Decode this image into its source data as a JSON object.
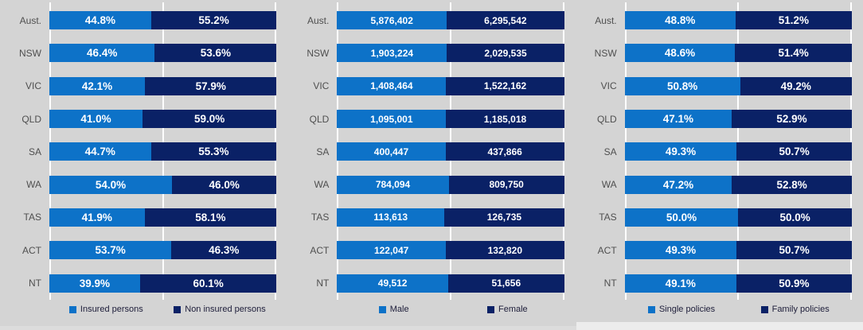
{
  "page": {
    "background": "#d4d4d4",
    "gridline_color": "#ffffff"
  },
  "colors": {
    "series_light": "#0d72c8",
    "series_dark": "#0a2166",
    "row_label": "#4f4f4f",
    "value_label": "#ffffff",
    "legend_text": "#20203c"
  },
  "chart_data": [
    {
      "type": "bar",
      "orientation": "horizontal",
      "stacking": "percent",
      "value_format": "percent",
      "grid": "white vertical line at 50%",
      "legend_position": "bottom",
      "categories": [
        "Aust.",
        "NSW",
        "VIC",
        "QLD",
        "SA",
        "WA",
        "TAS",
        "ACT",
        "NT"
      ],
      "series": [
        {
          "name": "Insured persons",
          "color_key": "series_light",
          "values": [
            44.8,
            46.4,
            42.1,
            41.0,
            44.7,
            54.0,
            41.9,
            53.7,
            39.9
          ]
        },
        {
          "name": "Non insured persons",
          "color_key": "series_dark",
          "values": [
            55.2,
            53.6,
            57.9,
            59.0,
            55.3,
            46.0,
            58.1,
            46.3,
            60.1
          ]
        }
      ]
    },
    {
      "type": "bar",
      "orientation": "horizontal",
      "stacking": "percent",
      "value_format": "number",
      "grid": "white vertical line at 50%",
      "legend_position": "bottom",
      "categories": [
        "Aust.",
        "NSW",
        "VIC",
        "QLD",
        "SA",
        "WA",
        "TAS",
        "ACT",
        "NT"
      ],
      "series": [
        {
          "name": "Male",
          "color_key": "series_light",
          "values": [
            5876402,
            1903224,
            1408464,
            1095001,
            400447,
            784094,
            113613,
            122047,
            49512
          ]
        },
        {
          "name": "Female",
          "color_key": "series_dark",
          "values": [
            6295542,
            2029535,
            1522162,
            1185018,
            437866,
            809750,
            126735,
            132820,
            51656
          ]
        }
      ]
    },
    {
      "type": "bar",
      "orientation": "horizontal",
      "stacking": "percent",
      "value_format": "percent",
      "grid": "white vertical line at 50%",
      "legend_position": "bottom",
      "categories": [
        "Aust.",
        "NSW",
        "VIC",
        "QLD",
        "SA",
        "WA",
        "TAS",
        "ACT",
        "NT"
      ],
      "series": [
        {
          "name": "Single policies",
          "color_key": "series_light",
          "values": [
            48.8,
            48.6,
            50.8,
            47.1,
            49.3,
            47.2,
            50.0,
            49.3,
            49.1
          ]
        },
        {
          "name": "Family policies",
          "color_key": "series_dark",
          "values": [
            51.2,
            51.4,
            49.2,
            52.9,
            50.7,
            52.8,
            50.0,
            50.7,
            50.9
          ]
        }
      ]
    }
  ]
}
